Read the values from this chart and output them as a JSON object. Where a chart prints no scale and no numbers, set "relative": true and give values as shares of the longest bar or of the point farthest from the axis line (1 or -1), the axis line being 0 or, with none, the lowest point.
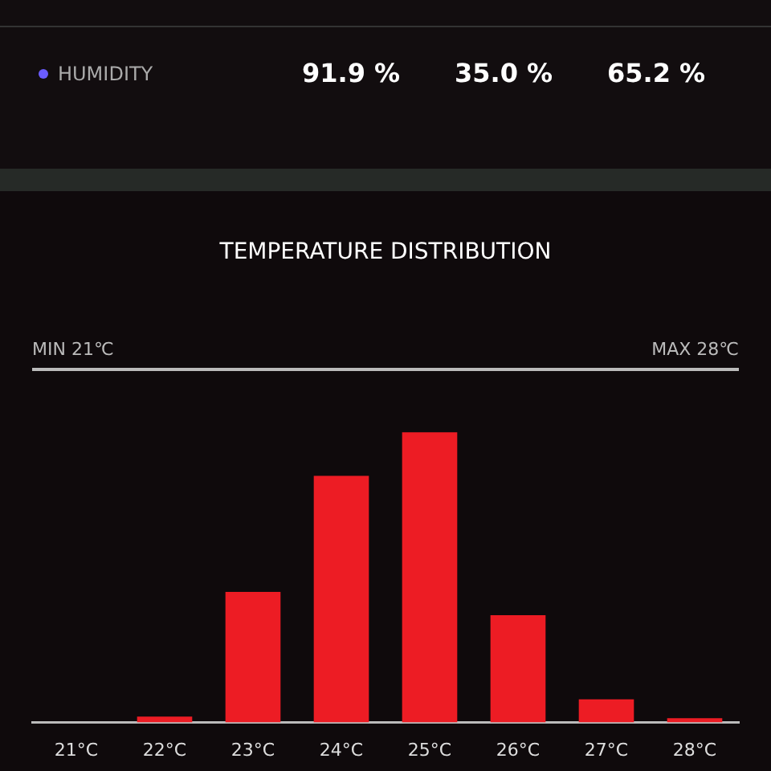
{
  "chart_data": [
    {
      "type": "other",
      "annotations": [
        "HUMIDITY",
        "91.9 %",
        "35.0 %",
        "65.2 %"
      ]
    },
    {
      "type": "bar",
      "title": "TEMPERATURE DISTRIBUTION",
      "annotations": [
        "MIN 21℃",
        "MAX 28℃"
      ],
      "categories": [
        "21°C",
        "22°C",
        "23°C",
        "24°C",
        "25°C",
        "26°C",
        "27°C",
        "28°C"
      ],
      "values": [
        0,
        0.02,
        0.45,
        0.85,
        1,
        0.37,
        0.08,
        0.015
      ],
      "color": "#ed1c24",
      "relative": true,
      "grid": false,
      "legend": false
    }
  ]
}
